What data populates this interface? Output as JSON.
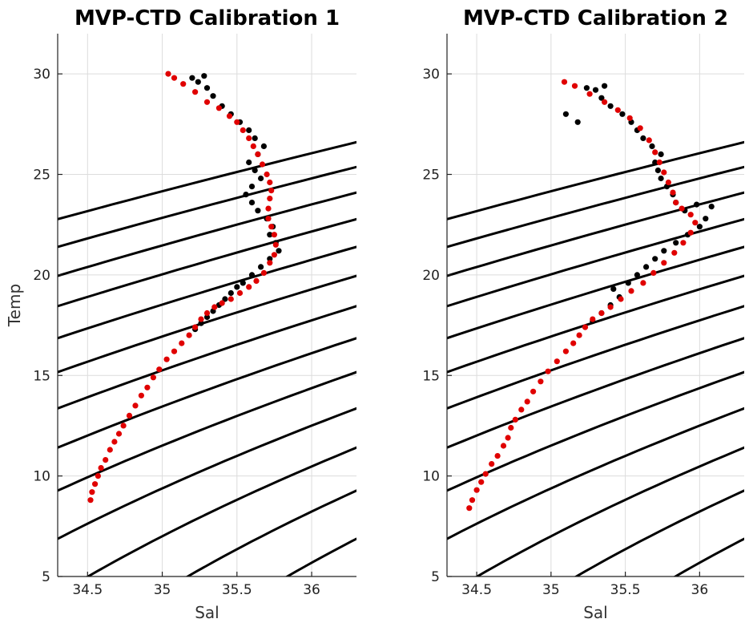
{
  "chart_data": [
    {
      "type": "scatter",
      "title": "MVP-CTD Calibration 1",
      "xlabel": "Sal",
      "ylabel": "Temp",
      "xlim": [
        34.3,
        36.3
      ],
      "ylim": [
        5,
        32
      ],
      "xticks": [
        "34.5",
        "35",
        "35.5",
        "36"
      ],
      "yticks": [
        "5",
        "10",
        "15",
        "20",
        "25",
        "30"
      ],
      "grid": true,
      "contours": "density isolines (black)",
      "series": [
        {
          "color": "#e00000",
          "points": [
            [
              34.52,
              8.8
            ],
            [
              34.53,
              9.2
            ],
            [
              34.55,
              9.6
            ],
            [
              34.57,
              10.0
            ],
            [
              34.59,
              10.4
            ],
            [
              34.62,
              10.8
            ],
            [
              34.65,
              11.3
            ],
            [
              34.68,
              11.7
            ],
            [
              34.71,
              12.1
            ],
            [
              34.74,
              12.5
            ],
            [
              34.78,
              13.0
            ],
            [
              34.82,
              13.5
            ],
            [
              34.86,
              14.0
            ],
            [
              34.9,
              14.4
            ],
            [
              34.94,
              14.9
            ],
            [
              34.98,
              15.3
            ],
            [
              35.03,
              15.8
            ],
            [
              35.08,
              16.2
            ],
            [
              35.13,
              16.6
            ],
            [
              35.18,
              17.0
            ],
            [
              35.22,
              17.4
            ],
            [
              35.26,
              17.8
            ],
            [
              35.3,
              18.1
            ],
            [
              35.35,
              18.4
            ],
            [
              35.4,
              18.6
            ],
            [
              35.46,
              18.8
            ],
            [
              35.52,
              19.1
            ],
            [
              35.58,
              19.4
            ],
            [
              35.63,
              19.7
            ],
            [
              35.68,
              20.1
            ],
            [
              35.72,
              20.6
            ],
            [
              35.75,
              21.0
            ],
            [
              35.76,
              21.5
            ],
            [
              35.75,
              22.0
            ],
            [
              35.73,
              22.4
            ],
            [
              35.71,
              22.8
            ],
            [
              35.71,
              23.3
            ],
            [
              35.72,
              23.8
            ],
            [
              35.73,
              24.2
            ],
            [
              35.72,
              24.6
            ],
            [
              35.7,
              25.0
            ],
            [
              35.67,
              25.5
            ],
            [
              35.64,
              26.0
            ],
            [
              35.61,
              26.4
            ],
            [
              35.58,
              26.8
            ],
            [
              35.54,
              27.2
            ],
            [
              35.5,
              27.6
            ],
            [
              35.45,
              27.9
            ],
            [
              35.38,
              28.3
            ],
            [
              35.3,
              28.6
            ],
            [
              35.22,
              29.1
            ],
            [
              35.14,
              29.5
            ],
            [
              35.08,
              29.8
            ],
            [
              35.04,
              30.0
            ]
          ]
        },
        {
          "color": "#000000",
          "points": [
            [
              35.22,
              17.3
            ],
            [
              35.26,
              17.6
            ],
            [
              35.3,
              17.9
            ],
            [
              35.34,
              18.2
            ],
            [
              35.38,
              18.5
            ],
            [
              35.42,
              18.8
            ],
            [
              35.46,
              19.1
            ],
            [
              35.5,
              19.4
            ],
            [
              35.54,
              19.6
            ],
            [
              35.6,
              20.0
            ],
            [
              35.66,
              20.4
            ],
            [
              35.72,
              20.8
            ],
            [
              35.78,
              21.2
            ],
            [
              35.76,
              21.6
            ],
            [
              35.72,
              22.0
            ],
            [
              35.74,
              22.4
            ],
            [
              35.7,
              22.8
            ],
            [
              35.64,
              23.2
            ],
            [
              35.6,
              23.6
            ],
            [
              35.56,
              24.0
            ],
            [
              35.6,
              24.4
            ],
            [
              35.66,
              24.8
            ],
            [
              35.62,
              25.2
            ],
            [
              35.58,
              25.6
            ],
            [
              35.64,
              26.0
            ],
            [
              35.68,
              26.4
            ],
            [
              35.62,
              26.8
            ],
            [
              35.58,
              27.2
            ],
            [
              35.52,
              27.6
            ],
            [
              35.46,
              28.0
            ],
            [
              35.4,
              28.4
            ],
            [
              35.34,
              28.9
            ],
            [
              35.3,
              29.3
            ],
            [
              35.24,
              29.6
            ],
            [
              35.2,
              29.8
            ],
            [
              35.28,
              29.9
            ]
          ]
        }
      ]
    },
    {
      "type": "scatter",
      "title": "MVP-CTD Calibration 2",
      "xlabel": "Sal",
      "ylabel": "",
      "xlim": [
        34.3,
        36.3
      ],
      "ylim": [
        5,
        32
      ],
      "xticks": [
        "34.5",
        "35",
        "35.5",
        "36"
      ],
      "yticks": [
        "5",
        "10",
        "15",
        "20",
        "25",
        "30"
      ],
      "grid": true,
      "contours": "density isolines (black)",
      "series": [
        {
          "color": "#e00000",
          "points": [
            [
              34.45,
              8.4
            ],
            [
              34.47,
              8.8
            ],
            [
              34.5,
              9.3
            ],
            [
              34.53,
              9.7
            ],
            [
              34.56,
              10.1
            ],
            [
              34.6,
              10.6
            ],
            [
              34.64,
              11.0
            ],
            [
              34.68,
              11.5
            ],
            [
              34.71,
              11.9
            ],
            [
              34.73,
              12.4
            ],
            [
              34.76,
              12.8
            ],
            [
              34.8,
              13.3
            ],
            [
              34.84,
              13.7
            ],
            [
              34.88,
              14.2
            ],
            [
              34.93,
              14.7
            ],
            [
              34.98,
              15.2
            ],
            [
              35.04,
              15.7
            ],
            [
              35.1,
              16.2
            ],
            [
              35.15,
              16.6
            ],
            [
              35.19,
              17.0
            ],
            [
              35.23,
              17.4
            ],
            [
              35.28,
              17.8
            ],
            [
              35.34,
              18.1
            ],
            [
              35.4,
              18.4
            ],
            [
              35.47,
              18.8
            ],
            [
              35.54,
              19.2
            ],
            [
              35.62,
              19.6
            ],
            [
              35.69,
              20.1
            ],
            [
              35.76,
              20.6
            ],
            [
              35.83,
              21.1
            ],
            [
              35.89,
              21.6
            ],
            [
              35.94,
              22.1
            ],
            [
              35.97,
              22.6
            ],
            [
              35.94,
              23.0
            ],
            [
              35.88,
              23.3
            ],
            [
              35.84,
              23.6
            ],
            [
              35.82,
              24.1
            ],
            [
              35.79,
              24.6
            ],
            [
              35.76,
              25.1
            ],
            [
              35.73,
              25.6
            ],
            [
              35.7,
              26.1
            ],
            [
              35.66,
              26.7
            ],
            [
              35.6,
              27.3
            ],
            [
              35.53,
              27.8
            ],
            [
              35.45,
              28.2
            ],
            [
              35.36,
              28.6
            ],
            [
              35.26,
              29.0
            ],
            [
              35.16,
              29.4
            ],
            [
              35.09,
              29.6
            ]
          ]
        },
        {
          "color": "#000000",
          "points": [
            [
              35.28,
              17.7
            ],
            [
              35.34,
              18.1
            ],
            [
              35.4,
              18.5
            ],
            [
              35.46,
              18.9
            ],
            [
              35.42,
              19.3
            ],
            [
              35.52,
              19.6
            ],
            [
              35.58,
              20.0
            ],
            [
              35.64,
              20.4
            ],
            [
              35.7,
              20.8
            ],
            [
              35.76,
              21.2
            ],
            [
              35.84,
              21.6
            ],
            [
              35.92,
              22.0
            ],
            [
              36.0,
              22.4
            ],
            [
              36.04,
              22.8
            ],
            [
              36.08,
              23.4
            ],
            [
              35.98,
              23.5
            ],
            [
              35.9,
              23.2
            ],
            [
              35.84,
              23.6
            ],
            [
              35.82,
              24.0
            ],
            [
              35.78,
              24.4
            ],
            [
              35.74,
              24.8
            ],
            [
              35.72,
              25.2
            ],
            [
              35.7,
              25.6
            ],
            [
              35.74,
              26.0
            ],
            [
              35.68,
              26.4
            ],
            [
              35.62,
              26.8
            ],
            [
              35.58,
              27.2
            ],
            [
              35.54,
              27.6
            ],
            [
              35.48,
              28.0
            ],
            [
              35.4,
              28.4
            ],
            [
              35.34,
              28.8
            ],
            [
              35.3,
              29.2
            ],
            [
              35.36,
              29.4
            ],
            [
              35.24,
              29.3
            ],
            [
              35.1,
              28.0
            ],
            [
              35.18,
              27.6
            ]
          ]
        }
      ]
    }
  ]
}
